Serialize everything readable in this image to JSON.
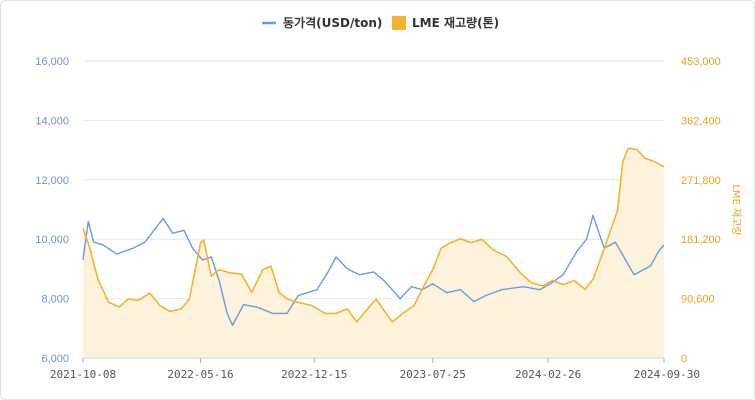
{
  "chart_data": {
    "type": "line",
    "title": "",
    "legend": {
      "placement": "top-center",
      "items": [
        {
          "label": "동가격(USD/ton)",
          "color": "#6a9be0",
          "symbol": "line"
        },
        {
          "label": "LME 재고량(톤)",
          "color": "#f4b32a",
          "symbol": "square"
        }
      ]
    },
    "ylabel_left": "",
    "ylabel_right": "LME 재고량",
    "xlim": [
      "2021-10-08",
      "2024-09-30"
    ],
    "ylim_left": [
      6000,
      16000
    ],
    "ylim_right": [
      0,
      453000
    ],
    "grid": "horizontal",
    "x_ticks": [
      "2021-10-08",
      "2022-05-16",
      "2022-12-15",
      "2023-07-25",
      "2024-02-26",
      "2024-09-30"
    ],
    "y_left_ticks": [
      "6,000",
      "8,000",
      "10,000",
      "12,000",
      "14,000",
      "16,000"
    ],
    "y_left_tick_values": [
      6000,
      8000,
      10000,
      12000,
      14000,
      16000
    ],
    "y_right_ticks": [
      "0",
      "90,600",
      "181,200",
      "271,800",
      "362,400",
      "453,000"
    ],
    "y_right_tick_values": [
      0,
      90600,
      181200,
      271800,
      362400,
      453000
    ],
    "series": [
      {
        "name": "동가격(USD/ton)",
        "axis": "left",
        "color": "#6a9be0",
        "style": "line",
        "points": [
          [
            "2021-10-08",
            9300
          ],
          [
            "2021-10-18",
            10600
          ],
          [
            "2021-10-28",
            9900
          ],
          [
            "2021-11-15",
            9800
          ],
          [
            "2021-12-10",
            9500
          ],
          [
            "2022-01-10",
            9700
          ],
          [
            "2022-02-01",
            9900
          ],
          [
            "2022-03-07",
            10700
          ],
          [
            "2022-03-25",
            10200
          ],
          [
            "2022-04-15",
            10300
          ],
          [
            "2022-05-01",
            9700
          ],
          [
            "2022-05-20",
            9300
          ],
          [
            "2022-06-05",
            9400
          ],
          [
            "2022-06-20",
            8600
          ],
          [
            "2022-07-05",
            7500
          ],
          [
            "2022-07-15",
            7100
          ],
          [
            "2022-08-05",
            7800
          ],
          [
            "2022-09-01",
            7700
          ],
          [
            "2022-09-28",
            7500
          ],
          [
            "2022-10-25",
            7500
          ],
          [
            "2022-11-15",
            8100
          ],
          [
            "2022-12-20",
            8300
          ],
          [
            "2023-01-10",
            8900
          ],
          [
            "2023-01-25",
            9400
          ],
          [
            "2023-02-15",
            9000
          ],
          [
            "2023-03-10",
            8800
          ],
          [
            "2023-04-05",
            8900
          ],
          [
            "2023-04-25",
            8600
          ],
          [
            "2023-05-25",
            8000
          ],
          [
            "2023-06-15",
            8400
          ],
          [
            "2023-07-05",
            8300
          ],
          [
            "2023-07-25",
            8500
          ],
          [
            "2023-08-20",
            8200
          ],
          [
            "2023-09-15",
            8300
          ],
          [
            "2023-10-10",
            7900
          ],
          [
            "2023-11-01",
            8100
          ],
          [
            "2023-12-01",
            8300
          ],
          [
            "2024-01-10",
            8400
          ],
          [
            "2024-02-10",
            8300
          ],
          [
            "2024-03-01",
            8500
          ],
          [
            "2024-03-25",
            8800
          ],
          [
            "2024-04-20",
            9600
          ],
          [
            "2024-05-08",
            10000
          ],
          [
            "2024-05-20",
            10800
          ],
          [
            "2024-06-10",
            9700
          ],
          [
            "2024-07-01",
            9900
          ],
          [
            "2024-07-20",
            9300
          ],
          [
            "2024-08-05",
            8800
          ],
          [
            "2024-08-15",
            8900
          ],
          [
            "2024-09-05",
            9100
          ],
          [
            "2024-09-20",
            9600
          ],
          [
            "2024-09-30",
            9800
          ]
        ]
      },
      {
        "name": "LME 재고량(톤)",
        "axis": "right",
        "color": "#f4b32a",
        "style": "area",
        "fill": "#fdf3dc",
        "points": [
          [
            "2021-10-08",
            198000
          ],
          [
            "2021-10-20",
            170000
          ],
          [
            "2021-11-05",
            120000
          ],
          [
            "2021-11-25",
            85000
          ],
          [
            "2021-12-15",
            78000
          ],
          [
            "2022-01-01",
            90000
          ],
          [
            "2022-01-20",
            88000
          ],
          [
            "2022-02-10",
            99000
          ],
          [
            "2022-03-01",
            80000
          ],
          [
            "2022-03-20",
            71000
          ],
          [
            "2022-04-10",
            75000
          ],
          [
            "2022-04-25",
            90000
          ],
          [
            "2022-05-05",
            130000
          ],
          [
            "2022-05-16",
            175000
          ],
          [
            "2022-05-22",
            180000
          ],
          [
            "2022-06-05",
            125000
          ],
          [
            "2022-06-20",
            135000
          ],
          [
            "2022-07-10",
            130000
          ],
          [
            "2022-08-01",
            128000
          ],
          [
            "2022-08-20",
            100000
          ],
          [
            "2022-09-10",
            135000
          ],
          [
            "2022-09-25",
            140000
          ],
          [
            "2022-10-10",
            100000
          ],
          [
            "2022-10-25",
            90000
          ],
          [
            "2022-11-15",
            85000
          ],
          [
            "2022-12-10",
            80000
          ],
          [
            "2023-01-05",
            68000
          ],
          [
            "2023-01-25",
            68000
          ],
          [
            "2023-02-15",
            75000
          ],
          [
            "2023-03-05",
            55000
          ],
          [
            "2023-03-25",
            75000
          ],
          [
            "2023-04-10",
            90000
          ],
          [
            "2023-04-25",
            72000
          ],
          [
            "2023-05-10",
            55000
          ],
          [
            "2023-05-30",
            68000
          ],
          [
            "2023-06-20",
            80000
          ],
          [
            "2023-07-05",
            105000
          ],
          [
            "2023-07-25",
            135000
          ],
          [
            "2023-08-10",
            168000
          ],
          [
            "2023-08-25",
            175000
          ],
          [
            "2023-09-15",
            182000
          ],
          [
            "2023-10-05",
            176000
          ],
          [
            "2023-10-25",
            181000
          ],
          [
            "2023-11-15",
            165000
          ],
          [
            "2023-12-10",
            155000
          ],
          [
            "2024-01-05",
            130000
          ],
          [
            "2024-01-25",
            115000
          ],
          [
            "2024-02-15",
            110000
          ],
          [
            "2024-03-05",
            118000
          ],
          [
            "2024-03-25",
            112000
          ],
          [
            "2024-04-15",
            118000
          ],
          [
            "2024-05-05",
            105000
          ],
          [
            "2024-05-20",
            120000
          ],
          [
            "2024-06-05",
            155000
          ],
          [
            "2024-06-20",
            190000
          ],
          [
            "2024-07-05",
            225000
          ],
          [
            "2024-07-15",
            300000
          ],
          [
            "2024-07-25",
            320000
          ],
          [
            "2024-08-10",
            318000
          ],
          [
            "2024-08-25",
            305000
          ],
          [
            "2024-09-10",
            300000
          ],
          [
            "2024-09-30",
            292000
          ]
        ]
      }
    ]
  }
}
